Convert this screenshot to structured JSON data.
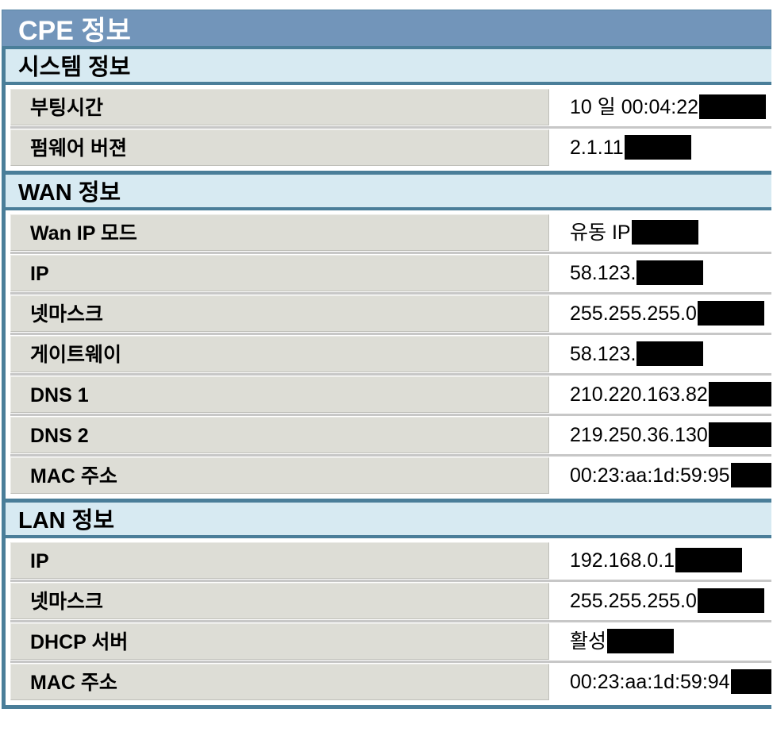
{
  "page": {
    "title": "CPE 정보"
  },
  "colors": {
    "title_bar_bg": "#7295BA",
    "section_header_bg": "#D7EAF2",
    "rule_teal": "#4A7E99",
    "label_cell_bg": "#DDDDD6",
    "row_separator": "#C7C7C7",
    "redaction_box": "#000000"
  },
  "sections": [
    {
      "title": "시스템 정보",
      "rows": [
        {
          "label": "부팅시간",
          "value": "10 일 00:04:22",
          "redacted": false
        },
        {
          "label": "펌웨어 버젼",
          "value": "2.1.11",
          "redacted": false
        }
      ]
    },
    {
      "title": "WAN 정보",
      "rows": [
        {
          "label": "Wan IP 모드",
          "value": "유동 IP",
          "redacted": false
        },
        {
          "label": "IP",
          "value": "58.123.",
          "redacted": true
        },
        {
          "label": "넷마스크",
          "value": "255.255.255.0",
          "redacted": false
        },
        {
          "label": "게이트웨이",
          "value": "58.123.",
          "redacted": true
        },
        {
          "label": "DNS 1",
          "value": "210.220.163.82",
          "redacted": false
        },
        {
          "label": "DNS 2",
          "value": "219.250.36.130",
          "redacted": false
        },
        {
          "label": "MAC 주소",
          "value": "00:23:aa:1d:59:95",
          "redacted": false
        }
      ]
    },
    {
      "title": "LAN 정보",
      "rows": [
        {
          "label": "IP",
          "value": "192.168.0.1",
          "redacted": false
        },
        {
          "label": "넷마스크",
          "value": "255.255.255.0",
          "redacted": false
        },
        {
          "label": "DHCP 서버",
          "value": "활성",
          "redacted": false
        },
        {
          "label": "MAC 주소",
          "value": "00:23:aa:1d:59:94",
          "redacted": false
        }
      ]
    }
  ]
}
